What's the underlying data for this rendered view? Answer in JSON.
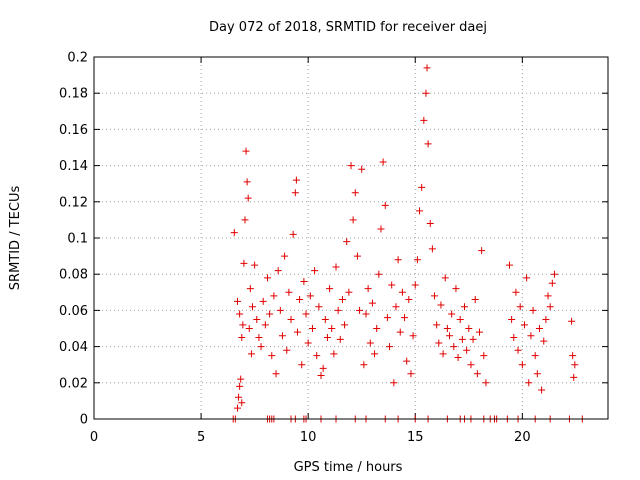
{
  "chart_data": {
    "type": "scatter",
    "title": "Day 072 of 2018, SRMTID for receiver daej",
    "xlabel": "GPS time / hours",
    "ylabel": "SRMTID / TECUs",
    "xlim": [
      0,
      24
    ],
    "ylim": [
      0,
      0.2
    ],
    "xticks": [
      0,
      5,
      10,
      15,
      20
    ],
    "yticks": [
      0,
      0.02,
      0.04,
      0.06,
      0.08,
      0.1,
      0.12,
      0.14,
      0.16,
      0.18,
      0.2
    ],
    "grid": true,
    "marker": "plus",
    "color": "#e00000",
    "series": [
      {
        "points": [
          [
            6.55,
            0.103
          ],
          [
            6.7,
            0.006
          ],
          [
            6.75,
            0.012
          ],
          [
            6.8,
            0.018
          ],
          [
            6.85,
            0.022
          ],
          [
            6.9,
            0.009
          ],
          [
            6.7,
            0.065
          ],
          [
            6.8,
            0.058
          ],
          [
            6.9,
            0.045
          ],
          [
            6.95,
            0.052
          ],
          [
            7.0,
            0.086
          ],
          [
            7.05,
            0.11
          ],
          [
            7.1,
            0.148
          ],
          [
            7.15,
            0.131
          ],
          [
            7.2,
            0.122
          ],
          [
            7.25,
            0.05
          ],
          [
            7.3,
            0.072
          ],
          [
            7.35,
            0.036
          ],
          [
            7.4,
            0.062
          ],
          [
            7.5,
            0.085
          ],
          [
            7.6,
            0.055
          ],
          [
            7.7,
            0.045
          ],
          [
            7.8,
            0.04
          ],
          [
            7.9,
            0.065
          ],
          [
            8.0,
            0.052
          ],
          [
            8.1,
            0.078
          ],
          [
            8.2,
            0.058
          ],
          [
            8.3,
            0.035
          ],
          [
            8.4,
            0.068
          ],
          [
            8.5,
            0.025
          ],
          [
            8.6,
            0.082
          ],
          [
            8.7,
            0.06
          ],
          [
            8.8,
            0.046
          ],
          [
            8.9,
            0.09
          ],
          [
            9.0,
            0.038
          ],
          [
            9.1,
            0.07
          ],
          [
            9.2,
            0.055
          ],
          [
            9.3,
            0.102
          ],
          [
            9.4,
            0.125
          ],
          [
            9.45,
            0.132
          ],
          [
            9.5,
            0.048
          ],
          [
            9.6,
            0.066
          ],
          [
            9.7,
            0.03
          ],
          [
            9.8,
            0.076
          ],
          [
            9.9,
            0.058
          ],
          [
            10.0,
            0.042
          ],
          [
            10.1,
            0.068
          ],
          [
            10.2,
            0.05
          ],
          [
            10.3,
            0.082
          ],
          [
            10.4,
            0.035
          ],
          [
            10.5,
            0.062
          ],
          [
            10.6,
            0.024
          ],
          [
            10.7,
            0.028
          ],
          [
            10.8,
            0.055
          ],
          [
            10.9,
            0.045
          ],
          [
            11.0,
            0.072
          ],
          [
            11.1,
            0.05
          ],
          [
            11.2,
            0.036
          ],
          [
            11.3,
            0.084
          ],
          [
            11.4,
            0.06
          ],
          [
            11.5,
            0.044
          ],
          [
            11.6,
            0.066
          ],
          [
            11.7,
            0.052
          ],
          [
            11.8,
            0.098
          ],
          [
            11.9,
            0.07
          ],
          [
            12.0,
            0.14
          ],
          [
            12.1,
            0.11
          ],
          [
            12.2,
            0.125
          ],
          [
            12.3,
            0.09
          ],
          [
            12.4,
            0.06
          ],
          [
            12.5,
            0.138
          ],
          [
            12.6,
            0.03
          ],
          [
            12.7,
            0.058
          ],
          [
            12.8,
            0.072
          ],
          [
            12.9,
            0.042
          ],
          [
            13.0,
            0.064
          ],
          [
            13.1,
            0.036
          ],
          [
            13.2,
            0.05
          ],
          [
            13.3,
            0.08
          ],
          [
            13.4,
            0.105
          ],
          [
            13.5,
            0.142
          ],
          [
            13.6,
            0.118
          ],
          [
            13.7,
            0.056
          ],
          [
            13.8,
            0.04
          ],
          [
            13.9,
            0.074
          ],
          [
            14.0,
            0.02
          ],
          [
            14.1,
            0.062
          ],
          [
            14.2,
            0.088
          ],
          [
            14.3,
            0.048
          ],
          [
            14.4,
            0.07
          ],
          [
            14.5,
            0.056
          ],
          [
            14.6,
            0.032
          ],
          [
            14.7,
            0.066
          ],
          [
            14.8,
            0.025
          ],
          [
            14.9,
            0.046
          ],
          [
            15.0,
            0.074
          ],
          [
            15.1,
            0.088
          ],
          [
            15.2,
            0.115
          ],
          [
            15.3,
            0.128
          ],
          [
            15.4,
            0.165
          ],
          [
            15.5,
            0.18
          ],
          [
            15.55,
            0.194
          ],
          [
            15.6,
            0.152
          ],
          [
            15.7,
            0.108
          ],
          [
            15.8,
            0.094
          ],
          [
            15.9,
            0.068
          ],
          [
            16.0,
            0.052
          ],
          [
            16.1,
            0.042
          ],
          [
            16.2,
            0.063
          ],
          [
            16.3,
            0.036
          ],
          [
            16.4,
            0.078
          ],
          [
            16.5,
            0.05
          ],
          [
            16.6,
            0.046
          ],
          [
            16.7,
            0.058
          ],
          [
            16.8,
            0.04
          ],
          [
            16.9,
            0.072
          ],
          [
            17.0,
            0.034
          ],
          [
            17.1,
            0.055
          ],
          [
            17.2,
            0.044
          ],
          [
            17.3,
            0.062
          ],
          [
            17.4,
            0.038
          ],
          [
            17.5,
            0.05
          ],
          [
            17.6,
            0.03
          ],
          [
            17.7,
            0.044
          ],
          [
            17.8,
            0.066
          ],
          [
            17.9,
            0.025
          ],
          [
            18.0,
            0.048
          ],
          [
            18.1,
            0.093
          ],
          [
            18.2,
            0.035
          ],
          [
            18.3,
            0.02
          ],
          [
            19.4,
            0.085
          ],
          [
            19.5,
            0.055
          ],
          [
            19.6,
            0.045
          ],
          [
            19.7,
            0.07
          ],
          [
            19.8,
            0.038
          ],
          [
            19.9,
            0.062
          ],
          [
            20.0,
            0.03
          ],
          [
            20.1,
            0.052
          ],
          [
            20.2,
            0.078
          ],
          [
            20.3,
            0.02
          ],
          [
            20.4,
            0.046
          ],
          [
            20.5,
            0.06
          ],
          [
            20.6,
            0.035
          ],
          [
            20.7,
            0.025
          ],
          [
            20.8,
            0.05
          ],
          [
            20.9,
            0.016
          ],
          [
            21.0,
            0.043
          ],
          [
            21.1,
            0.055
          ],
          [
            21.2,
            0.068
          ],
          [
            21.3,
            0.062
          ],
          [
            21.4,
            0.075
          ],
          [
            21.5,
            0.08
          ],
          [
            22.3,
            0.054
          ],
          [
            22.35,
            0.035
          ],
          [
            22.4,
            0.023
          ],
          [
            22.45,
            0.03
          ]
        ]
      },
      {
        "points": [
          [
            6.5,
            0
          ],
          [
            6.6,
            0
          ],
          [
            8.1,
            0
          ],
          [
            8.2,
            0
          ],
          [
            8.3,
            0
          ],
          [
            8.4,
            0
          ],
          [
            9.2,
            0
          ],
          [
            9.4,
            0
          ],
          [
            9.8,
            0
          ],
          [
            9.9,
            0
          ],
          [
            10.6,
            0
          ],
          [
            11.3,
            0
          ],
          [
            12.2,
            0
          ],
          [
            12.7,
            0
          ],
          [
            13.6,
            0
          ],
          [
            14.2,
            0
          ],
          [
            15.0,
            0
          ],
          [
            15.6,
            0
          ],
          [
            16.5,
            0
          ],
          [
            17.1,
            0
          ],
          [
            17.3,
            0
          ],
          [
            17.6,
            0
          ],
          [
            18.2,
            0
          ],
          [
            18.5,
            0
          ],
          [
            18.7,
            0
          ],
          [
            18.8,
            0
          ],
          [
            19.3,
            0
          ],
          [
            19.8,
            0
          ],
          [
            20.6,
            0
          ],
          [
            21.3,
            0
          ],
          [
            22.2,
            0
          ],
          [
            22.8,
            0
          ]
        ]
      }
    ]
  }
}
